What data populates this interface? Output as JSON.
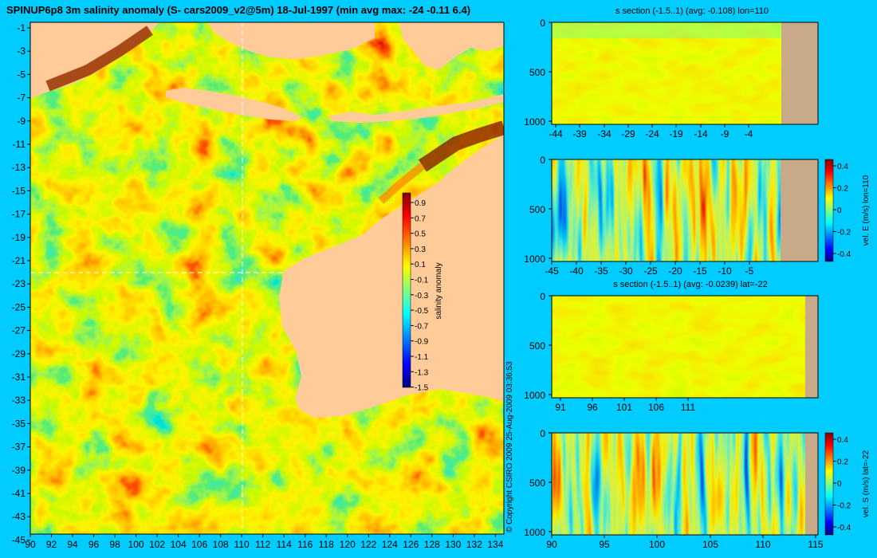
{
  "title": "SPINUP6p8 3m salinity anomaly (S- cars2009_v2@5m) 18-Jul-1997 (min avg max: -24 -0.11 6.4)",
  "copyright": "© Copyright CSIRO 2009   25-Aug-2009 03:36:53",
  "colors": {
    "background": "#00ccff",
    "land": "#ffcc99",
    "section_land": "#c8aa88",
    "colormap": [
      "#00007f",
      "#0000ff",
      "#007fff",
      "#00ffff",
      "#7fff7f",
      "#ffff00",
      "#ff7f00",
      "#ff0000",
      "#7f0000"
    ]
  },
  "map": {
    "lon_ticks": [
      "90",
      "92",
      "94",
      "96",
      "98",
      "100",
      "102",
      "104",
      "106",
      "108",
      "110",
      "112",
      "114",
      "116",
      "118",
      "120",
      "122",
      "124",
      "126",
      "128",
      "130",
      "132",
      "134"
    ],
    "lat_ticks": [
      "-1",
      "-3",
      "-5",
      "-7",
      "-9",
      "-11",
      "-13",
      "-15",
      "-17",
      "-19",
      "-21",
      "-23",
      "-25",
      "-27",
      "-29",
      "-31",
      "-33",
      "-35",
      "-37",
      "-39",
      "-41",
      "-43",
      "-45"
    ],
    "section_lon": 110,
    "section_lat": -22,
    "colorbar": {
      "label": "salinity anomaly",
      "ticks": [
        "0.9",
        "0.7",
        "0.5",
        "0.3",
        "0.1",
        "-0.1",
        "-0.3",
        "-0.5",
        "-0.7",
        "-0.9",
        "-1.1",
        "-1.3",
        "-1.5"
      ]
    }
  },
  "panels": [
    {
      "title": "s section (-1.5..1) (avg: -0.108) lon=110",
      "x_ticks": [
        "-44",
        "-39",
        "-34",
        "-29",
        "-24",
        "-19",
        "-14",
        "-9",
        "-4"
      ],
      "y_ticks": [
        "0",
        "500",
        "1000"
      ],
      "colorbar": null
    },
    {
      "title": "",
      "x_ticks": [
        "-45",
        "-40",
        "-35",
        "-30",
        "-25",
        "-20",
        "-15",
        "-10",
        "-5"
      ],
      "y_ticks": [
        "0",
        "500",
        "1000"
      ],
      "colorbar": {
        "label": "vel. E (m/s) lon=110",
        "ticks": [
          "0.4",
          "0.2",
          "0",
          "-0.2",
          "-0.4"
        ]
      }
    },
    {
      "title": "s section (-1.5..1) (avg: -0.0239) lat=-22",
      "x_ticks": [
        "91",
        "96",
        "101",
        "106",
        "111"
      ],
      "y_ticks": [
        "0",
        "500",
        "1000"
      ],
      "colorbar": null
    },
    {
      "title": "",
      "x_ticks": [
        "90",
        "95",
        "100",
        "105",
        "110",
        "115"
      ],
      "y_ticks": [
        "0",
        "500",
        "1000"
      ],
      "colorbar": {
        "label": "vel. S (m/s) lat=-22",
        "ticks": [
          "0.4",
          "0.2",
          "0",
          "-0.2",
          "-0.4"
        ]
      }
    }
  ]
}
